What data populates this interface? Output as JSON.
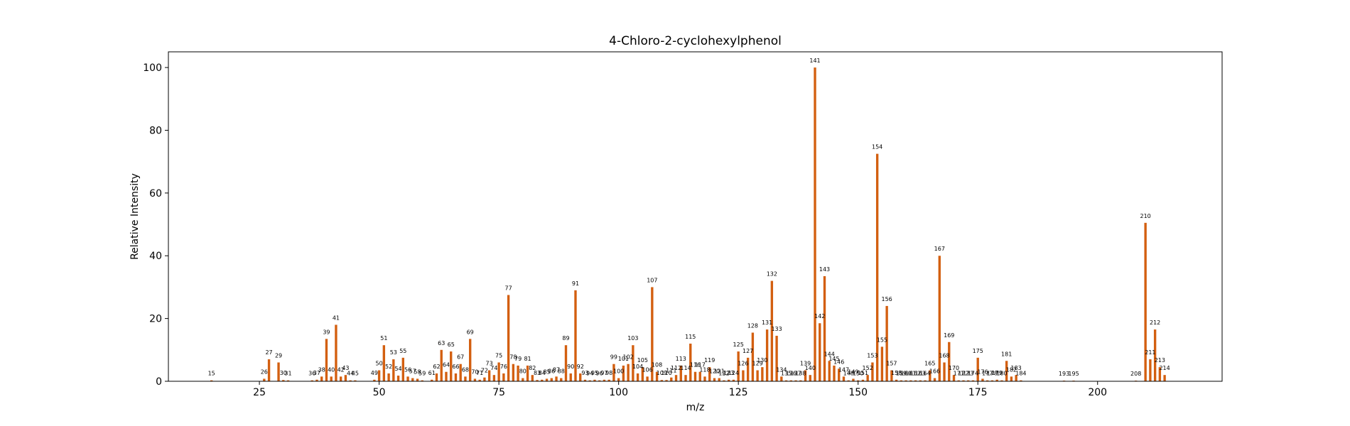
{
  "chart_data": {
    "type": "bar",
    "title": "4-Chloro-2-cyclohexylphenol",
    "xlabel": "m/z",
    "ylabel": "Relative Intensity",
    "xlim": [
      6,
      226
    ],
    "ylim": [
      0,
      105
    ],
    "xticks": [
      25,
      50,
      75,
      100,
      125,
      150,
      175,
      200
    ],
    "yticks": [
      0,
      20,
      40,
      60,
      80,
      100
    ],
    "grid": false,
    "bar_color": "#d35f10",
    "peaks": [
      {
        "mz": 15,
        "intensity": 0.3
      },
      {
        "mz": 26,
        "intensity": 0.8
      },
      {
        "mz": 27,
        "intensity": 7.0
      },
      {
        "mz": 29,
        "intensity": 6.0
      },
      {
        "mz": 30,
        "intensity": 0.4
      },
      {
        "mz": 31,
        "intensity": 0.3
      },
      {
        "mz": 36,
        "intensity": 0.3
      },
      {
        "mz": 37,
        "intensity": 0.5
      },
      {
        "mz": 38,
        "intensity": 1.5
      },
      {
        "mz": 39,
        "intensity": 13.5
      },
      {
        "mz": 40,
        "intensity": 1.5
      },
      {
        "mz": 41,
        "intensity": 18.0
      },
      {
        "mz": 42,
        "intensity": 1.5
      },
      {
        "mz": 43,
        "intensity": 2.0
      },
      {
        "mz": 44,
        "intensity": 0.3
      },
      {
        "mz": 45,
        "intensity": 0.3
      },
      {
        "mz": 49,
        "intensity": 0.5
      },
      {
        "mz": 50,
        "intensity": 3.5
      },
      {
        "mz": 51,
        "intensity": 11.5
      },
      {
        "mz": 52,
        "intensity": 2.5
      },
      {
        "mz": 53,
        "intensity": 7.0
      },
      {
        "mz": 54,
        "intensity": 1.8
      },
      {
        "mz": 55,
        "intensity": 7.5
      },
      {
        "mz": 56,
        "intensity": 1.5
      },
      {
        "mz": 57,
        "intensity": 1.0
      },
      {
        "mz": 58,
        "intensity": 0.8
      },
      {
        "mz": 59,
        "intensity": 0.3
      },
      {
        "mz": 61,
        "intensity": 0.5
      },
      {
        "mz": 62,
        "intensity": 2.5
      },
      {
        "mz": 63,
        "intensity": 10.0
      },
      {
        "mz": 64,
        "intensity": 3.0
      },
      {
        "mz": 65,
        "intensity": 9.5
      },
      {
        "mz": 66,
        "intensity": 2.5
      },
      {
        "mz": 67,
        "intensity": 5.5
      },
      {
        "mz": 68,
        "intensity": 1.5
      },
      {
        "mz": 69,
        "intensity": 13.5
      },
      {
        "mz": 70,
        "intensity": 0.8
      },
      {
        "mz": 71,
        "intensity": 0.5
      },
      {
        "mz": 72,
        "intensity": 1.2
      },
      {
        "mz": 73,
        "intensity": 3.5
      },
      {
        "mz": 74,
        "intensity": 2.0
      },
      {
        "mz": 75,
        "intensity": 6.0
      },
      {
        "mz": 76,
        "intensity": 2.5
      },
      {
        "mz": 77,
        "intensity": 27.5
      },
      {
        "mz": 78,
        "intensity": 5.5
      },
      {
        "mz": 79,
        "intensity": 5.0
      },
      {
        "mz": 80,
        "intensity": 1.0
      },
      {
        "mz": 81,
        "intensity": 5.0
      },
      {
        "mz": 82,
        "intensity": 2.0
      },
      {
        "mz": 83,
        "intensity": 0.4
      },
      {
        "mz": 84,
        "intensity": 0.5
      },
      {
        "mz": 85,
        "intensity": 0.8
      },
      {
        "mz": 86,
        "intensity": 1.0
      },
      {
        "mz": 87,
        "intensity": 1.5
      },
      {
        "mz": 88,
        "intensity": 1.0
      },
      {
        "mz": 89,
        "intensity": 11.5
      },
      {
        "mz": 90,
        "intensity": 2.5
      },
      {
        "mz": 91,
        "intensity": 29.0
      },
      {
        "mz": 92,
        "intensity": 2.5
      },
      {
        "mz": 93,
        "intensity": 0.5
      },
      {
        "mz": 94,
        "intensity": 0.3
      },
      {
        "mz": 95,
        "intensity": 0.5
      },
      {
        "mz": 96,
        "intensity": 0.3
      },
      {
        "mz": 97,
        "intensity": 0.5
      },
      {
        "mz": 98,
        "intensity": 0.5
      },
      {
        "mz": 99,
        "intensity": 5.5
      },
      {
        "mz": 100,
        "intensity": 1.0
      },
      {
        "mz": 101,
        "intensity": 5.0
      },
      {
        "mz": 102,
        "intensity": 5.5
      },
      {
        "mz": 103,
        "intensity": 11.5
      },
      {
        "mz": 104,
        "intensity": 2.5
      },
      {
        "mz": 105,
        "intensity": 4.5
      },
      {
        "mz": 106,
        "intensity": 1.5
      },
      {
        "mz": 107,
        "intensity": 30.0
      },
      {
        "mz": 108,
        "intensity": 3.0
      },
      {
        "mz": 109,
        "intensity": 0.4
      },
      {
        "mz": 110,
        "intensity": 0.4
      },
      {
        "mz": 111,
        "intensity": 1.2
      },
      {
        "mz": 112,
        "intensity": 2.0
      },
      {
        "mz": 113,
        "intensity": 5.0
      },
      {
        "mz": 114,
        "intensity": 2.0
      },
      {
        "mz": 115,
        "intensity": 12.0
      },
      {
        "mz": 116,
        "intensity": 3.0
      },
      {
        "mz": 117,
        "intensity": 3.0
      },
      {
        "mz": 118,
        "intensity": 1.5
      },
      {
        "mz": 119,
        "intensity": 4.5
      },
      {
        "mz": 120,
        "intensity": 1.0
      },
      {
        "mz": 121,
        "intensity": 1.0
      },
      {
        "mz": 122,
        "intensity": 0.3
      },
      {
        "mz": 123,
        "intensity": 0.5
      },
      {
        "mz": 124,
        "intensity": 0.5
      },
      {
        "mz": 125,
        "intensity": 9.5
      },
      {
        "mz": 126,
        "intensity": 3.5
      },
      {
        "mz": 127,
        "intensity": 7.5
      },
      {
        "mz": 128,
        "intensity": 15.5
      },
      {
        "mz": 129,
        "intensity": 3.5
      },
      {
        "mz": 130,
        "intensity": 4.5
      },
      {
        "mz": 131,
        "intensity": 16.5
      },
      {
        "mz": 132,
        "intensity": 32.0
      },
      {
        "mz": 133,
        "intensity": 14.5
      },
      {
        "mz": 134,
        "intensity": 1.5
      },
      {
        "mz": 135,
        "intensity": 0.3
      },
      {
        "mz": 136,
        "intensity": 0.3
      },
      {
        "mz": 137,
        "intensity": 0.3
      },
      {
        "mz": 138,
        "intensity": 0.3
      },
      {
        "mz": 139,
        "intensity": 3.5
      },
      {
        "mz": 140,
        "intensity": 2.0
      },
      {
        "mz": 141,
        "intensity": 100.0
      },
      {
        "mz": 142,
        "intensity": 18.5
      },
      {
        "mz": 143,
        "intensity": 33.5
      },
      {
        "mz": 144,
        "intensity": 6.5
      },
      {
        "mz": 145,
        "intensity": 5.0
      },
      {
        "mz": 146,
        "intensity": 4.0
      },
      {
        "mz": 147,
        "intensity": 1.5
      },
      {
        "mz": 148,
        "intensity": 0.3
      },
      {
        "mz": 149,
        "intensity": 0.8
      },
      {
        "mz": 150,
        "intensity": 0.3
      },
      {
        "mz": 151,
        "intensity": 0.5
      },
      {
        "mz": 152,
        "intensity": 2.0
      },
      {
        "mz": 153,
        "intensity": 6.0
      },
      {
        "mz": 154,
        "intensity": 72.5
      },
      {
        "mz": 155,
        "intensity": 11.0
      },
      {
        "mz": 156,
        "intensity": 24.0
      },
      {
        "mz": 157,
        "intensity": 3.5
      },
      {
        "mz": 158,
        "intensity": 0.5
      },
      {
        "mz": 159,
        "intensity": 0.3
      },
      {
        "mz": 160,
        "intensity": 0.3
      },
      {
        "mz": 161,
        "intensity": 0.3
      },
      {
        "mz": 162,
        "intensity": 0.3
      },
      {
        "mz": 163,
        "intensity": 0.3
      },
      {
        "mz": 164,
        "intensity": 0.3
      },
      {
        "mz": 165,
        "intensity": 3.5
      },
      {
        "mz": 166,
        "intensity": 1.0
      },
      {
        "mz": 167,
        "intensity": 40.0
      },
      {
        "mz": 168,
        "intensity": 6.0
      },
      {
        "mz": 169,
        "intensity": 12.5
      },
      {
        "mz": 170,
        "intensity": 2.0
      },
      {
        "mz": 171,
        "intensity": 0.3
      },
      {
        "mz": 172,
        "intensity": 0.3
      },
      {
        "mz": 173,
        "intensity": 0.3
      },
      {
        "mz": 174,
        "intensity": 0.3
      },
      {
        "mz": 175,
        "intensity": 7.5
      },
      {
        "mz": 176,
        "intensity": 0.8
      },
      {
        "mz": 177,
        "intensity": 0.3
      },
      {
        "mz": 178,
        "intensity": 0.3
      },
      {
        "mz": 179,
        "intensity": 0.5
      },
      {
        "mz": 180,
        "intensity": 0.3
      },
      {
        "mz": 181,
        "intensity": 6.5
      },
      {
        "mz": 182,
        "intensity": 1.5
      },
      {
        "mz": 183,
        "intensity": 2.0
      },
      {
        "mz": 184,
        "intensity": 0.3
      },
      {
        "mz": 193,
        "intensity": 0.2
      },
      {
        "mz": 195,
        "intensity": 0.2
      },
      {
        "mz": 208,
        "intensity": 0.2
      },
      {
        "mz": 210,
        "intensity": 50.5
      },
      {
        "mz": 211,
        "intensity": 7.0
      },
      {
        "mz": 212,
        "intensity": 16.5
      },
      {
        "mz": 213,
        "intensity": 4.5
      },
      {
        "mz": 214,
        "intensity": 2.0
      }
    ]
  }
}
